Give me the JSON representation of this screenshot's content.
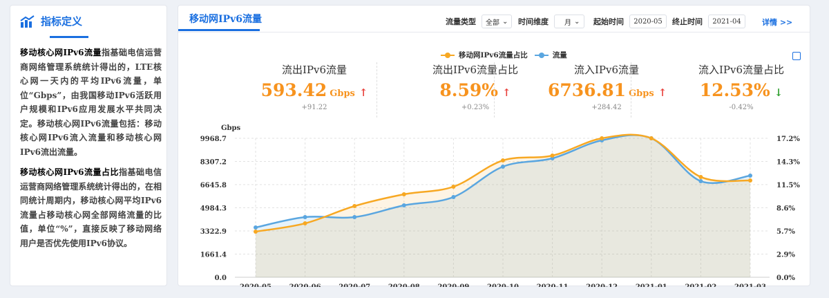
{
  "sidebar": {
    "title": "指标定义",
    "icon": "bar-chart-icon",
    "p1_bold": "移动核心网IPv6流量",
    "p1_text": "指基础电信运营商网络管理系统统计得出的，LTE核心网一天内的平均IPv6流量，单位“Gbps”，由我国移动IPv6活跃用户规模和IPv6应用发展水平共同决定。移动核心网IPv6流量包括：移动核心网IPv6流入流量和移动核心网IPv6流出流量。",
    "p2_bold": "移动核心网IPv6流量占比",
    "p2_text": "指基础电信运营商网络管理系统统计得出的，在相同统计周期内，移动核心网平均IPv6流量占移动核心网全部网络流量的比值，单位“%”，直接反映了移动网络用户是否优先使用IPv6协议。"
  },
  "header": {
    "tab": "移动网IPv6流量",
    "type_label": "流量类型",
    "type_value": "全部",
    "dim_label": "时间维度",
    "dim_value": "月",
    "start_label": "起始时间",
    "start_value": "2020-05",
    "end_label": "终止时间",
    "end_value": "2021-04",
    "detail": "详情 >>"
  },
  "kpis": [
    {
      "title": "流出IPv6流量",
      "value": "593.42",
      "unit": "Gbps",
      "trend": "up",
      "delta": "+91.22"
    },
    {
      "title": "流出IPv6流量占比",
      "value": "8.59%",
      "unit": "",
      "trend": "up",
      "delta": "+0.23%"
    },
    {
      "title": "流入IPv6流量",
      "value": "6736.81",
      "unit": "Gbps",
      "trend": "up",
      "delta": "+284.42"
    },
    {
      "title": "流入IPv6流量占比",
      "value": "12.53%",
      "unit": "",
      "trend": "down",
      "delta": "-0.42%"
    }
  ],
  "colors": {
    "orange": "#f7a823",
    "blue": "#5aa6e0",
    "up": "#e8413c",
    "down": "#2a9d2a",
    "accent": "#1a6fe0"
  },
  "chart_data": {
    "type": "line",
    "categories": [
      "2020-05",
      "2020-06",
      "2020-07",
      "2020-08",
      "2020-09",
      "2020-10",
      "2020-11",
      "2020-12",
      "2021-01",
      "2021-02",
      "2021-03"
    ],
    "ylabel": "Gbps",
    "y_ticks": [
      "0.0",
      "1661.4",
      "3322.9",
      "4984.3",
      "6645.8",
      "8307.2",
      "9968.7"
    ],
    "y2_ticks": [
      "0.0%",
      "2.9%",
      "5.7%",
      "8.6%",
      "11.5%",
      "14.3%",
      "17.2%"
    ],
    "ylim": [
      0,
      9968.7
    ],
    "y2lim": [
      0,
      17.2
    ],
    "grid": true,
    "legend": "top",
    "series": [
      {
        "name": "移动网IPv6流量占比",
        "axis": "right",
        "color": "#f7a823",
        "values": [
          5.65,
          6.67,
          8.81,
          10.27,
          11.21,
          14.46,
          15.06,
          17.2,
          17.2,
          12.41,
          11.98
        ]
      },
      {
        "name": "流量",
        "axis": "left",
        "color": "#5aa6e0",
        "values": [
          3571,
          4315,
          4315,
          5158,
          5753,
          7935,
          8530,
          9820,
          9968.7,
          6894,
          7290
        ]
      }
    ]
  }
}
